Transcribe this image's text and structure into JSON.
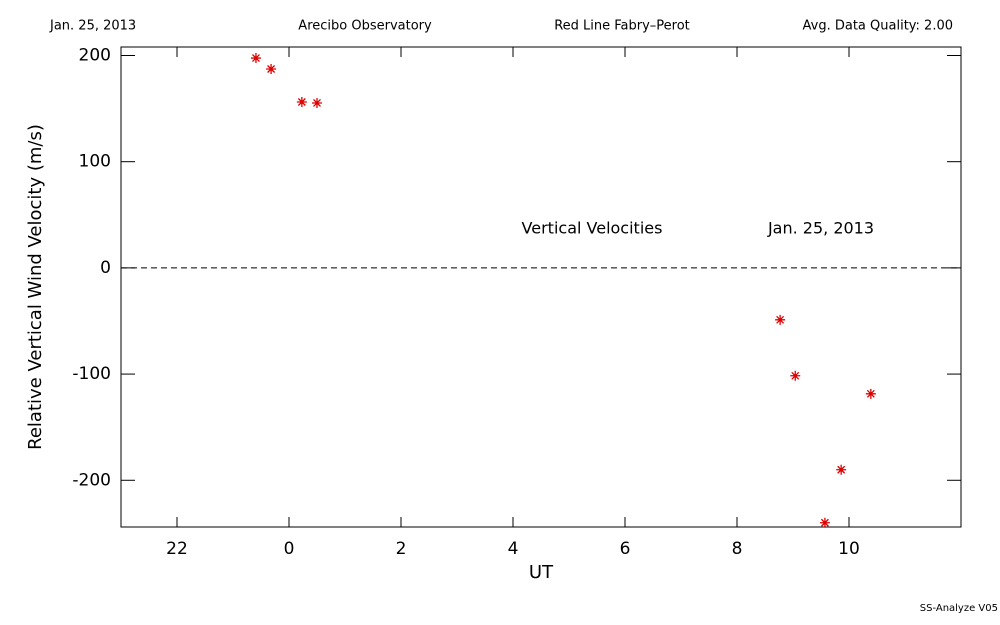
{
  "chart_data": {
    "type": "scatter",
    "header": [
      "Jan. 25, 2013",
      "Arecibo Observatory",
      "Red Line Fabry–Perot",
      "Avg. Data Quality: 2.00"
    ],
    "x_label": "UT",
    "y_label": "Relative Vertical Wind Velocity (m/s)",
    "annotations": [
      "Vertical Velocities",
      "Jan. 25, 2013"
    ],
    "footer": "SS-Analyze V05",
    "x": [
      -0.59,
      -0.32,
      0.23,
      0.5,
      8.77,
      9.04,
      10.39,
      9.86,
      9.57
    ],
    "values": [
      197.6,
      187.3,
      156.2,
      155.3,
      -48.9,
      -101.6,
      -118.6,
      -190.1,
      -240
    ],
    "color": "#dd0000",
    "hline": 0,
    "xlim": [
      -3,
      12
    ],
    "xticks": [
      {
        "value": -2,
        "label": "22"
      },
      0,
      2,
      4,
      6,
      8,
      10
    ],
    "ylim": [
      -244,
      208
    ],
    "yticks": [
      -200,
      -100,
      0,
      100,
      200
    ]
  }
}
